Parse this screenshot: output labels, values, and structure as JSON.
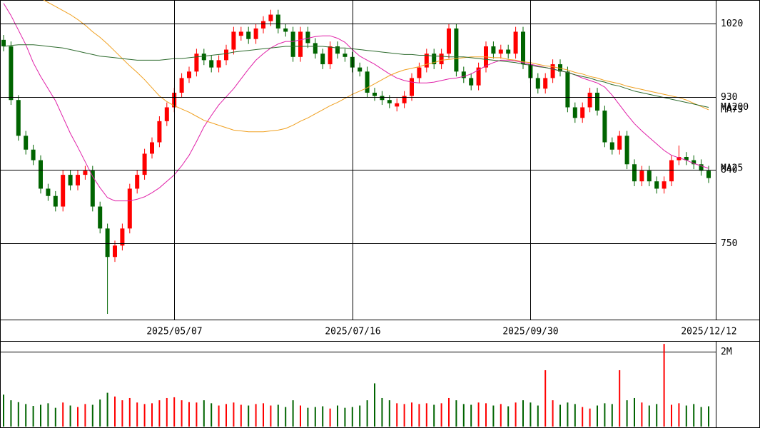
{
  "chart_data": {
    "type": "candlestick",
    "categories": [
      null,
      null,
      null,
      null,
      null,
      null,
      null,
      null,
      null,
      null,
      null,
      null,
      null,
      null,
      null,
      null,
      null,
      null,
      null,
      null,
      null,
      null,
      null,
      "2025/05/07",
      null,
      null,
      null,
      null,
      null,
      null,
      null,
      null,
      null,
      null,
      null,
      null,
      null,
      null,
      null,
      null,
      null,
      null,
      null,
      null,
      null,
      null,
      null,
      "2025/07/16",
      null,
      null,
      null,
      null,
      null,
      null,
      null,
      null,
      null,
      null,
      null,
      null,
      null,
      null,
      null,
      null,
      null,
      null,
      null,
      null,
      null,
      null,
      null,
      "2025/09/30",
      null,
      null,
      null,
      null,
      null,
      null,
      null,
      null,
      null,
      null,
      null,
      null,
      null,
      null,
      null,
      null,
      null,
      null,
      null,
      null,
      null,
      null,
      null,
      "2025/12/12"
    ],
    "open": [
      1000,
      992,
      926,
      882,
      865,
      852,
      817,
      808,
      795,
      834,
      821,
      834,
      839,
      795,
      768,
      733,
      747,
      768,
      817,
      834,
      860,
      874,
      900,
      917,
      935,
      953,
      961,
      983,
      975,
      966,
      975,
      988,
      1005,
      1010,
      1001,
      1014,
      1023,
      1031,
      1014,
      1010,
      979,
      1010,
      996,
      983,
      970,
      992,
      983,
      979,
      966,
      961,
      935,
      931,
      926,
      918,
      922,
      931,
      953,
      966,
      983,
      970,
      983,
      1014,
      961,
      953,
      944,
      966,
      992,
      983,
      988,
      983,
      1010,
      970,
      953,
      940,
      953,
      970,
      961,
      917,
      904,
      917,
      935,
      913,
      874,
      865,
      882,
      847,
      826,
      839,
      826,
      817,
      826,
      852,
      856,
      852,
      847,
      839
    ],
    "high": [
      1006,
      998,
      932,
      888,
      871,
      858,
      823,
      814,
      840,
      840,
      840,
      845,
      845,
      801,
      774,
      753,
      774,
      823,
      840,
      866,
      880,
      906,
      923,
      941,
      959,
      967,
      989,
      989,
      981,
      981,
      994,
      1016,
      1016,
      1016,
      1020,
      1029,
      1037,
      1037,
      1020,
      1016,
      1016,
      1016,
      1002,
      989,
      998,
      998,
      989,
      985,
      972,
      967,
      941,
      937,
      932,
      928,
      937,
      959,
      972,
      989,
      989,
      989,
      1020,
      1020,
      967,
      959,
      972,
      998,
      998,
      994,
      994,
      1016,
      1016,
      976,
      959,
      959,
      976,
      976,
      967,
      923,
      923,
      941,
      941,
      919,
      880,
      888,
      888,
      853,
      845,
      845,
      832,
      832,
      858,
      870,
      862,
      858,
      853,
      845
    ],
    "low": [
      986,
      920,
      876,
      859,
      846,
      811,
      802,
      789,
      789,
      815,
      815,
      828,
      789,
      762,
      663,
      727,
      741,
      762,
      811,
      828,
      854,
      868,
      894,
      911,
      929,
      947,
      955,
      969,
      960,
      960,
      969,
      982,
      999,
      995,
      995,
      1008,
      1017,
      1008,
      1004,
      973,
      973,
      990,
      977,
      964,
      964,
      977,
      973,
      960,
      955,
      929,
      925,
      920,
      916,
      912,
      916,
      925,
      947,
      960,
      964,
      964,
      977,
      955,
      947,
      938,
      938,
      960,
      977,
      977,
      977,
      977,
      964,
      947,
      934,
      934,
      947,
      955,
      911,
      898,
      898,
      911,
      907,
      868,
      859,
      859,
      841,
      820,
      820,
      820,
      811,
      811,
      820,
      846,
      846,
      841,
      833,
      824
    ],
    "close": [
      992,
      926,
      882,
      865,
      852,
      817,
      808,
      795,
      834,
      821,
      834,
      839,
      795,
      768,
      733,
      747,
      768,
      817,
      834,
      860,
      874,
      900,
      917,
      935,
      953,
      961,
      983,
      975,
      966,
      975,
      988,
      1010,
      1010,
      1001,
      1014,
      1023,
      1031,
      1014,
      1010,
      979,
      1010,
      996,
      983,
      970,
      992,
      983,
      979,
      966,
      961,
      935,
      931,
      926,
      922,
      922,
      931,
      953,
      966,
      983,
      970,
      983,
      1014,
      961,
      953,
      944,
      966,
      992,
      983,
      988,
      983,
      1010,
      970,
      953,
      940,
      953,
      970,
      961,
      917,
      904,
      917,
      935,
      913,
      874,
      865,
      882,
      847,
      826,
      839,
      826,
      817,
      826,
      852,
      856,
      852,
      847,
      839,
      830
    ],
    "up_color": "#ff0000",
    "down_color": "#006400",
    "ylim": [
      656,
      1049
    ],
    "yticks": [
      750,
      840,
      930,
      1020
    ],
    "moving_averages": [
      {
        "name": "MA25",
        "color": "#e020a8",
        "values": [
          1045,
          1030,
          1012,
          994,
          972,
          955,
          940,
          925,
          905,
          885,
          868,
          850,
          832,
          818,
          806,
          802,
          802,
          802,
          804,
          807,
          812,
          818,
          826,
          834,
          845,
          858,
          875,
          893,
          907,
          920,
          930,
          940,
          952,
          964,
          975,
          983,
          990,
          995,
          998,
          998,
          1000,
          1002,
          1004,
          1005,
          1005,
          1002,
          997,
          988,
          980,
          975,
          970,
          964,
          958,
          953,
          950,
          948,
          947,
          947,
          948,
          950,
          952,
          953,
          955,
          958,
          963,
          968,
          972,
          975,
          975,
          974,
          972,
          970,
          968,
          966,
          964,
          962,
          960,
          957,
          953,
          950,
          947,
          942,
          932,
          920,
          908,
          897,
          888,
          880,
          872,
          864,
          858,
          855,
          852,
          848,
          845,
          842
        ]
      },
      {
        "name": "MA75",
        "color": "#f0a020",
        "values": [
          1090,
          1082,
          1074,
          1066,
          1058,
          1051,
          1046,
          1041,
          1036,
          1031,
          1025,
          1018,
          1010,
          1003,
          995,
          986,
          977,
          968,
          960,
          951,
          941,
          931,
          924,
          919,
          915,
          911,
          906,
          901,
          898,
          895,
          892,
          889,
          888,
          887,
          887,
          887,
          888,
          889,
          891,
          895,
          900,
          904,
          909,
          914,
          919,
          923,
          928,
          933,
          937,
          941,
          946,
          951,
          956,
          960,
          963,
          965,
          967,
          970,
          972,
          975,
          976,
          977,
          978,
          979,
          979,
          979,
          978,
          978,
          976,
          975,
          973,
          972,
          970,
          968,
          967,
          965,
          963,
          960,
          958,
          955,
          953,
          950,
          948,
          946,
          943,
          941,
          939,
          937,
          935,
          933,
          931,
          929,
          926,
          922,
          918,
          914
        ]
      },
      {
        "name": "MA200",
        "color": "#2e6b2e",
        "values": [
          992,
          993,
          994,
          994,
          994,
          993,
          992,
          991,
          990,
          988,
          986,
          984,
          982,
          980,
          979,
          978,
          977,
          976,
          975,
          975,
          975,
          975,
          976,
          977,
          977,
          978,
          979,
          980,
          981,
          982,
          983,
          985,
          986,
          987,
          988,
          989,
          990,
          991,
          992,
          992,
          992,
          992,
          992,
          992,
          991,
          990,
          990,
          989,
          988,
          987,
          986,
          985,
          984,
          983,
          982,
          982,
          981,
          981,
          980,
          980,
          979,
          979,
          979,
          978,
          977,
          976,
          975,
          974,
          973,
          972,
          970,
          969,
          967,
          966,
          964,
          962,
          960,
          957,
          955,
          953,
          950,
          948,
          945,
          943,
          940,
          937,
          935,
          933,
          931,
          929,
          927,
          925,
          923,
          921,
          919,
          917
        ]
      }
    ],
    "volume": {
      "values": [
        850000,
        700000,
        650000,
        600000,
        550000,
        580000,
        620000,
        500000,
        640000,
        560000,
        520000,
        600000,
        580000,
        720000,
        900000,
        800000,
        700000,
        760000,
        640000,
        600000,
        620000,
        700000,
        760000,
        780000,
        700000,
        650000,
        640000,
        700000,
        620000,
        560000,
        600000,
        640000,
        580000,
        560000,
        600000,
        620000,
        560000,
        580000,
        520000,
        700000,
        560000,
        500000,
        520000,
        540000,
        480000,
        560000,
        500000,
        520000,
        560000,
        700000,
        1150000,
        760000,
        700000,
        620000,
        600000,
        640000,
        600000,
        620000,
        580000,
        620000,
        760000,
        700000,
        600000,
        580000,
        640000,
        620000,
        560000,
        600000,
        540000,
        640000,
        700000,
        640000,
        560000,
        1500000,
        700000,
        580000,
        640000,
        600000,
        520000,
        480000,
        560000,
        620000,
        600000,
        1500000,
        700000,
        760000,
        640000,
        560000,
        600000,
        2200000,
        580000,
        620000,
        560000,
        600000,
        520000,
        540000
      ],
      "ylim": [
        0,
        2240000
      ],
      "yticks": [
        {
          "value": 2000000,
          "label": "2M"
        }
      ]
    }
  }
}
